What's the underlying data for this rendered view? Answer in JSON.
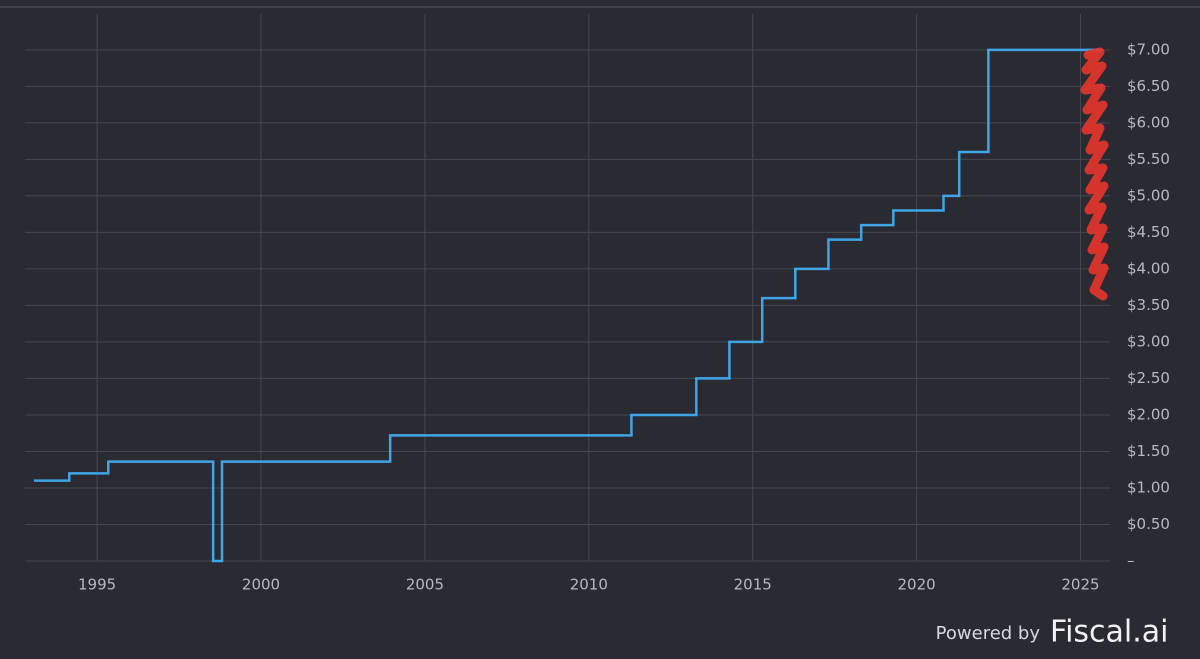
{
  "chart_data": {
    "type": "step",
    "x": [
      1993.11,
      1994.15,
      1995.34,
      1998.54,
      1998.81,
      2003.94,
      2011.3,
      2013.28,
      2014.29,
      2015.29,
      2016.3,
      2017.31,
      2018.31,
      2019.29,
      2020.82,
      2021.3,
      2022.19,
      2025.61
    ],
    "series": [
      {
        "color": "#3ea6e6",
        "values": [
          1.1,
          1.2,
          1.36,
          0,
          1.36,
          1.72,
          2.0,
          2.5,
          3.0,
          3.6,
          4.0,
          4.4,
          4.6,
          4.8,
          5.0,
          5.6,
          7.0,
          7.0
        ]
      }
    ],
    "xlim": [
      1992.8,
      2025.9
    ],
    "xticks": [
      1995,
      2000,
      2005,
      2010,
      2015,
      2020,
      2025
    ],
    "ylim": [
      0,
      7.6
    ],
    "yticks": [
      {
        "value": 0,
        "label": "–"
      },
      {
        "value": 0.5,
        "label": "$0.50"
      },
      {
        "value": 1,
        "label": "$1.00"
      },
      {
        "value": 1.5,
        "label": "$1.50"
      },
      {
        "value": 2,
        "label": "$2.00"
      },
      {
        "value": 2.5,
        "label": "$2.50"
      },
      {
        "value": 3,
        "label": "$3.00"
      },
      {
        "value": 3.5,
        "label": "$3.50"
      },
      {
        "value": 4,
        "label": "$4.00"
      },
      {
        "value": 4.5,
        "label": "$4.50"
      },
      {
        "value": 5,
        "label": "$5.00"
      },
      {
        "value": 5.5,
        "label": "$5.50"
      },
      {
        "value": 6,
        "label": "$6.00"
      },
      {
        "value": 6.5,
        "label": "$6.50"
      },
      {
        "value": 7,
        "label": "$7.00"
      }
    ],
    "grid": true
  },
  "branding": {
    "powered_by": "Powered by",
    "brand": "Fiscal.ai"
  }
}
